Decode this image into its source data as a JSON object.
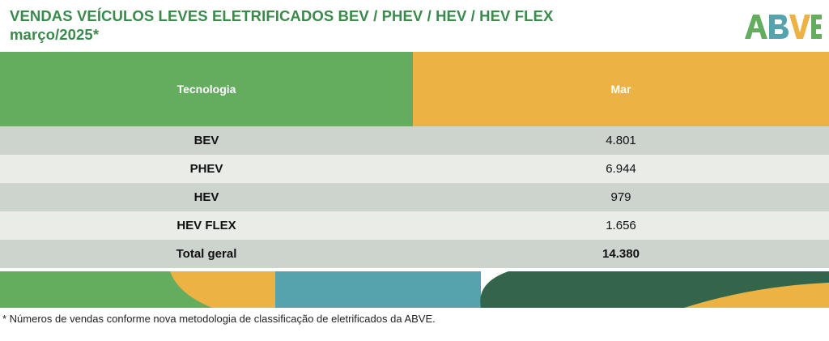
{
  "title": {
    "line1": "VENDAS VEÍCULOS LEVES ELETRIFICADOS BEV / PHEV / HEV / HEV FLEX",
    "line2": "março/2025*"
  },
  "logo": {
    "text": "ABVE"
  },
  "table": {
    "headers": {
      "technology": "Tecnologia",
      "month": "Mar"
    },
    "rows": [
      {
        "tech": "BEV",
        "value": "4.801"
      },
      {
        "tech": "PHEV",
        "value": "6.944"
      },
      {
        "tech": "HEV",
        "value": "979"
      },
      {
        "tech": "HEV FLEX",
        "value": "1.656"
      }
    ],
    "total": {
      "label": "Total geral",
      "value": "14.380"
    }
  },
  "footnote": "* Números de vendas conforme nova metodologia de classificação de eletrificados da ABVE.",
  "colors": {
    "title_green": "#3a8a4c",
    "header_green": "#64ad5f",
    "header_orange": "#ecb244",
    "row_dark": "#cdd3cd",
    "row_light": "#eaece8",
    "teal": "#56a3ad",
    "dark_green": "#33654a"
  }
}
